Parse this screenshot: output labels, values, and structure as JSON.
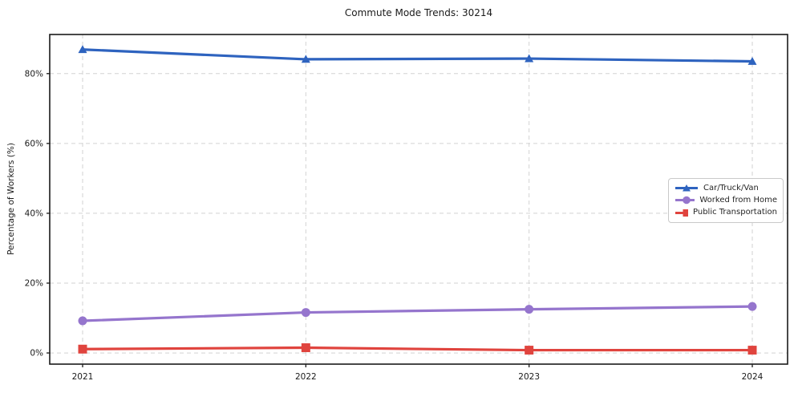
{
  "chart_data": {
    "type": "line",
    "title": "Commute Mode Trends: 30214",
    "xlabel": "",
    "ylabel": "Percentage of Workers (%)",
    "x": [
      2021,
      2022,
      2023,
      2024
    ],
    "yticks": [
      0,
      20,
      40,
      60,
      80
    ],
    "ytick_suffix": "%",
    "ylim": [
      -3.2,
      91.2
    ],
    "grid": true,
    "legend_position": "center right",
    "series": [
      {
        "name": "Car/Truck/Van",
        "color": "#2e63bf",
        "marker": "triangle",
        "values": [
          86.9,
          84.1,
          84.3,
          83.5
        ]
      },
      {
        "name": "Worked from Home",
        "color": "#9575cd",
        "marker": "circle",
        "values": [
          9.2,
          11.6,
          12.5,
          13.3
        ]
      },
      {
        "name": "Public Transportation",
        "color": "#e0443e",
        "marker": "square",
        "values": [
          1.1,
          1.5,
          0.8,
          0.8
        ]
      }
    ]
  },
  "colors": {
    "background": "#ffffff",
    "grid": "#d2d2d2",
    "spine": "#1a1a1a",
    "tick_text": "#1a1a1a",
    "legend_border": "#c9c9c9"
  }
}
